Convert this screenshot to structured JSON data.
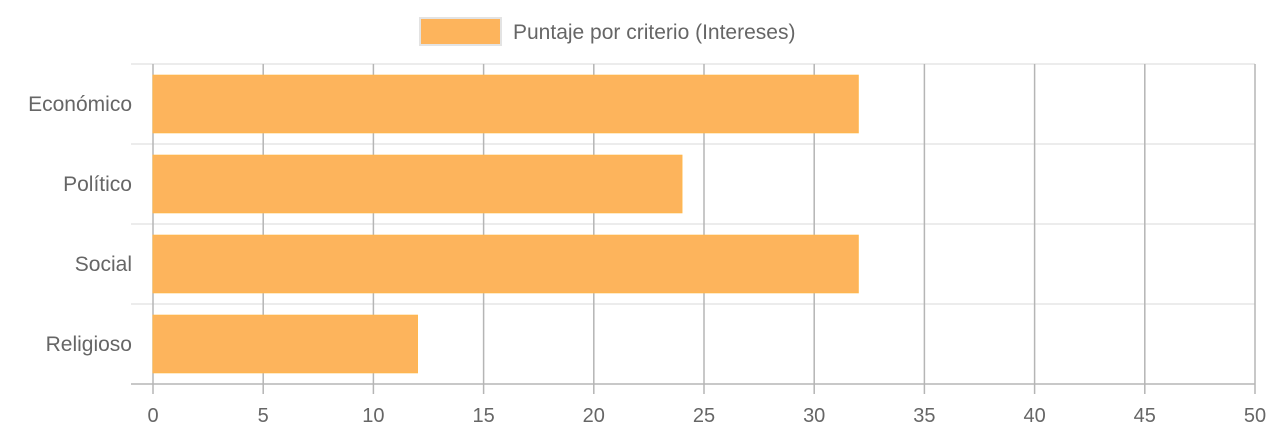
{
  "chart_data": {
    "type": "bar",
    "orientation": "horizontal",
    "categories": [
      "Económico",
      "Político",
      "Social",
      "Religioso"
    ],
    "series": [
      {
        "name": "Puntaje por criterio (Intereses)",
        "values": [
          32,
          24,
          32,
          12
        ],
        "color": "#FDB45C"
      }
    ],
    "xlim": [
      0,
      50
    ],
    "x_ticks": [
      0,
      5,
      10,
      15,
      20,
      25,
      30,
      35,
      40,
      45,
      50
    ],
    "grid": true,
    "legend_position": "top"
  },
  "colors": {
    "bar_fill": "#FDB45C",
    "bar_border": "#FFB74D",
    "grid_vertical": "#b5b5b5",
    "grid_horizontal": "#e6e6e6",
    "text": "#666666"
  }
}
